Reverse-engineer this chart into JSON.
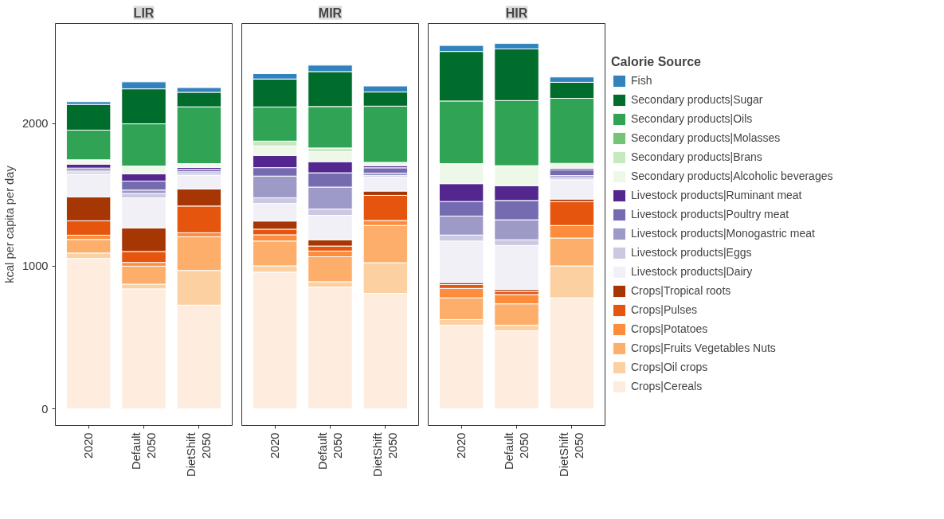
{
  "chart_data": [
    {
      "type": "bar",
      "title": "LIR",
      "ylabel": "kcal per capita per day",
      "stacked": true,
      "categories": [
        "2020",
        "Default\n2050",
        "DietShift\n2050"
      ],
      "ylim": [
        -116,
        2700
      ],
      "yticks": [
        0,
        1000,
        2000
      ],
      "series": [
        {
          "color": "#feedde",
          "values": [
            1054,
            841,
            727
          ]
        },
        {
          "color": "#fdd0a2",
          "values": [
            38,
            33,
            243
          ]
        },
        {
          "color": "#fdae6b",
          "values": [
            95,
            126,
            236
          ]
        },
        {
          "color": "#fd8d3c",
          "values": [
            30,
            26,
            28
          ]
        },
        {
          "color": "#e6550d",
          "values": [
            101,
            77,
            187
          ]
        },
        {
          "color": "#a63603",
          "values": [
            168,
            164,
            119
          ]
        },
        {
          "color": "#f2f0f7",
          "values": [
            159,
            212,
            96
          ]
        },
        {
          "color": "#cbc9e2",
          "values": [
            16,
            30,
            12
          ]
        },
        {
          "color": "#9e9ac8",
          "values": [
            12,
            24,
            13
          ]
        },
        {
          "color": "#756bb1",
          "values": [
            14,
            63,
            17
          ]
        },
        {
          "color": "#54278f",
          "values": [
            28,
            51,
            14
          ]
        },
        {
          "color": "#edf8e9",
          "values": [
            24,
            54,
            26
          ]
        },
        {
          "color": "#c7e9c0",
          "values": [
            3,
            null,
            null
          ]
        },
        {
          "color": "#74c476",
          "values": [
            3,
            null,
            null
          ]
        },
        {
          "color": "#31a354",
          "values": [
            208,
            296,
            398
          ]
        },
        {
          "color": "#006d2c",
          "values": [
            180,
            245,
            102
          ]
        },
        {
          "color": "#3182bd",
          "values": [
            19,
            49,
            33
          ]
        }
      ]
    },
    {
      "type": "bar",
      "title": "MIR",
      "stacked": true,
      "categories": [
        "2020",
        "Default\n2050",
        "DietShift\n2050"
      ],
      "ylim": [
        -116,
        2700
      ],
      "yticks": [
        0,
        1000,
        2000
      ],
      "tick_labels": "x",
      "series": [
        {
          "color": "#feedde",
          "values": [
            958,
            853,
            809
          ]
        },
        {
          "color": "#fdd0a2",
          "values": [
            44,
            38,
            215
          ]
        },
        {
          "color": "#fdae6b",
          "values": [
            174,
            175,
            261
          ]
        },
        {
          "color": "#fd8d3c",
          "values": [
            44,
            40,
            35
          ]
        },
        {
          "color": "#e6550d",
          "values": [
            39,
            35,
            176
          ]
        },
        {
          "color": "#a63603",
          "values": [
            57,
            44,
            30
          ]
        },
        {
          "color": "#f2f0f7",
          "values": [
            123,
            171,
            96
          ]
        },
        {
          "color": "#cbc9e2",
          "values": [
            40,
            44,
            12
          ]
        },
        {
          "color": "#9e9ac8",
          "values": [
            152,
            154,
            18
          ]
        },
        {
          "color": "#756bb1",
          "values": [
            59,
            100,
            37
          ]
        },
        {
          "color": "#54278f",
          "values": [
            86,
            78,
            15
          ]
        },
        {
          "color": "#edf8e9",
          "values": [
            65,
            70,
            23
          ]
        },
        {
          "color": "#c7e9c0",
          "values": [
            35,
            26,
            null
          ]
        },
        {
          "color": "#74c476",
          "values": [
            null,
            null,
            null
          ]
        },
        {
          "color": "#31a354",
          "values": [
            239,
            290,
            394
          ]
        },
        {
          "color": "#006d2c",
          "values": [
            196,
            245,
            99
          ]
        },
        {
          "color": "#3182bd",
          "values": [
            38,
            45,
            42
          ]
        }
      ]
    },
    {
      "type": "bar",
      "title": "HIR",
      "stacked": true,
      "categories": [
        "2020",
        "Default\n2050",
        "DietShift\n2050"
      ],
      "ylim": [
        -116,
        2700
      ],
      "yticks": [
        0,
        1000,
        2000
      ],
      "tick_labels": "x",
      "legend": "right",
      "legend_title": "Calorie Source",
      "series": [
        {
          "name": "Crops|Cereals",
          "color": "#feedde",
          "values": [
            586,
            547,
            778
          ]
        },
        {
          "name": "Crops|Oil crops",
          "color": "#fdd0a2",
          "values": [
            40,
            39,
            224
          ]
        },
        {
          "name": "Crops|Fruits Vegetables Nuts",
          "color": "#fdae6b",
          "values": [
            152,
            150,
            195
          ]
        },
        {
          "name": "Crops|Potatoes",
          "color": "#fd8d3c",
          "values": [
            66,
            65,
            88
          ]
        },
        {
          "name": "Crops|Pulses",
          "color": "#e6550d",
          "values": [
            27,
            21,
            168
          ]
        },
        {
          "name": "Crops|Tropical roots",
          "color": "#a63603",
          "values": [
            14,
            14,
            17
          ]
        },
        {
          "name": "Livestock products|Dairy",
          "color": "#f2f0f7",
          "values": [
            291,
            309,
            135
          ]
        },
        {
          "name": "Livestock products|Eggs",
          "color": "#cbc9e2",
          "values": [
            42,
            40,
            14
          ]
        },
        {
          "name": "Livestock products|Monogastric meat",
          "color": "#9e9ac8",
          "values": [
            133,
            140,
            15
          ]
        },
        {
          "name": "Livestock products|Poultry meat",
          "color": "#756bb1",
          "values": [
            102,
            135,
            41
          ]
        },
        {
          "name": "Livestock products|Ruminant meat",
          "color": "#54278f",
          "values": [
            125,
            104,
            10
          ]
        },
        {
          "name": "Secondary products|Alcoholic beverages",
          "color": "#edf8e9",
          "values": [
            140,
            140,
            35
          ]
        },
        {
          "name": "Secondary products|Brans",
          "color": "#c7e9c0",
          "values": [
            null,
            null,
            null
          ]
        },
        {
          "name": "Secondary products|Molasses",
          "color": "#74c476",
          "values": [
            null,
            null,
            null
          ]
        },
        {
          "name": "Secondary products|Oils",
          "color": "#31a354",
          "values": [
            439,
            456,
            456
          ]
        },
        {
          "name": "Secondary products|Sugar",
          "color": "#006d2c",
          "values": [
            347,
            362,
            112
          ]
        },
        {
          "name": "Fish",
          "color": "#3182bd",
          "values": [
            42,
            38,
            37
          ]
        }
      ]
    }
  ]
}
